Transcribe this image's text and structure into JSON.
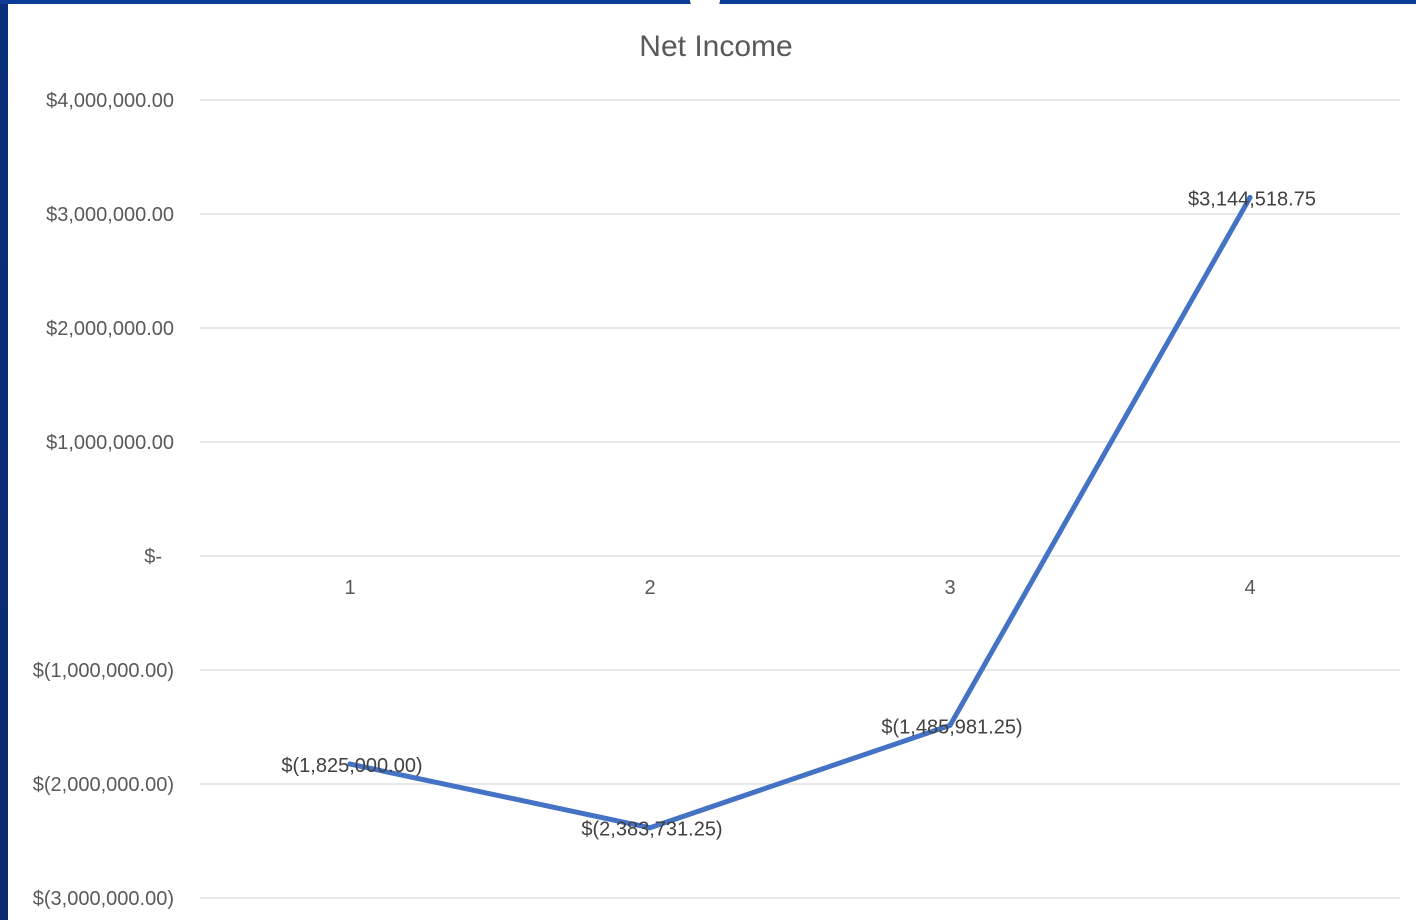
{
  "chart_data": {
    "type": "line",
    "title": "Net Income",
    "xlabel": "",
    "ylabel": "",
    "categories": [
      "1",
      "2",
      "3",
      "4"
    ],
    "series": [
      {
        "values": [
          -1825000.0,
          -2383731.25,
          -1485981.25,
          3144518.75
        ],
        "data_labels": [
          "$(1,825,000.00)",
          "$(2,383,731.25)",
          "$(1,485,981.25)",
          "$3,144,518.75"
        ],
        "color": "#4472c4"
      }
    ],
    "ylim": [
      -3000000,
      4000000
    ],
    "yticks": [
      4000000,
      3000000,
      2000000,
      1000000,
      0,
      -1000000,
      -2000000,
      -3000000
    ],
    "ytick_labels": [
      "$4,000,000.00",
      "$3,000,000.00",
      "$2,000,000.00",
      "$1,000,000.00",
      "$-",
      "$(1,000,000.00)",
      "$(2,000,000.00)",
      "$(3,000,000.00)"
    ],
    "grid": true,
    "legend": "none"
  }
}
